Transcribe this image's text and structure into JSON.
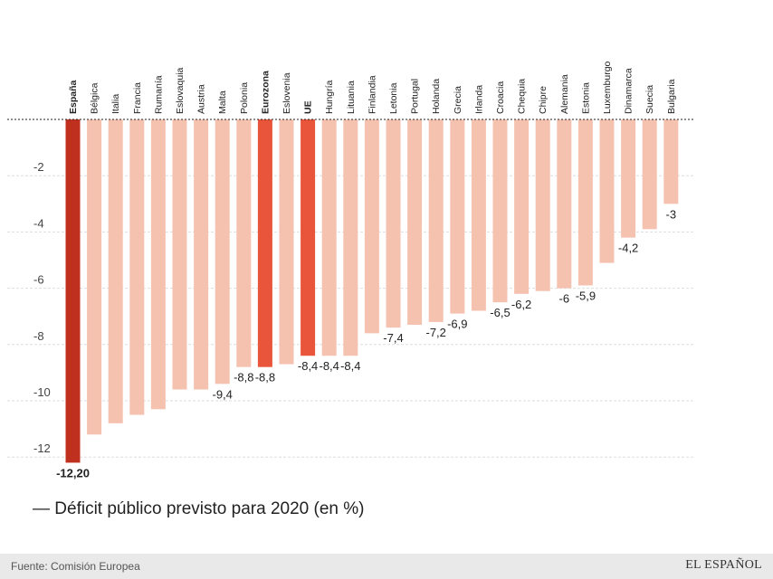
{
  "chart_data": {
    "type": "bar",
    "orientation": "vertical-negative",
    "title": "— Déficit público previsto para 2020 (en %)",
    "categories": [
      "España",
      "Bélgica",
      "Italia",
      "Francia",
      "Rumanía",
      "Eslovaquia",
      "Austria",
      "Malta",
      "Polonia",
      "Eurozona",
      "Eslovenia",
      "UE",
      "Hungría",
      "Lituania",
      "Finlandia",
      "Letonia",
      "Portugal",
      "Holanda",
      "Grecia",
      "Irlanda",
      "Croacia",
      "Chequia",
      "Chipre",
      "Alemania",
      "Estonia",
      "Luxemburgo",
      "Dinamarca",
      "Suecia",
      "Bulgaria"
    ],
    "values": [
      -12.2,
      -11.2,
      -10.8,
      -10.5,
      -10.3,
      -9.6,
      -9.6,
      -9.4,
      -8.8,
      -8.8,
      -8.7,
      -8.4,
      -8.4,
      -8.4,
      -7.6,
      -7.4,
      -7.3,
      -7.2,
      -6.9,
      -6.8,
      -6.5,
      -6.2,
      -6.1,
      -6,
      -5.9,
      -5.1,
      -4.2,
      -3.9,
      -3
    ],
    "value_labels": [
      "-12,20",
      "",
      "",
      "",
      "",
      "",
      "",
      "-9,4",
      "-8,8",
      "-8,8",
      "",
      "-8,4",
      "-8,4",
      "-8,4",
      "",
      "-7,4",
      "",
      "-7,2",
      "-6,9",
      "",
      "-6,5",
      "-6,2",
      "",
      "-6",
      "-5,9",
      "",
      "-4,2",
      "",
      "-3"
    ],
    "highlight": {
      "España": "#c0301e",
      "Eurozona": "#e8553a",
      "UE": "#e8553a"
    },
    "bold_categories": [
      "España",
      "Eurozona",
      "UE"
    ],
    "default_color": "#f5c2b0",
    "yticks": [
      -2,
      -4,
      -6,
      -8,
      -10,
      -12
    ],
    "ylim": [
      -12.6,
      0
    ],
    "grid": true
  },
  "legend_text": "— Déficit público previsto para 2020 (en %)",
  "footer": {
    "source": "Fuente: Comisión Europea",
    "logo": "EL ESPAÑOL"
  }
}
